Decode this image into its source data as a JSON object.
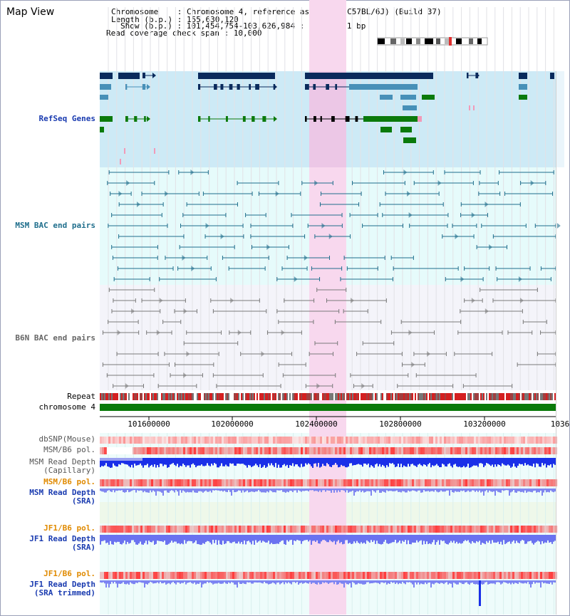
{
  "title": "Map View",
  "info": {
    "line1": "Chromosome    : Chromosome 4, reference assembly (C57BL/6J) (Build 37)",
    "line2": "Length (b.p.) : 155,630,120",
    "line3": "Show (b.p.) : 101,454,754-103,626,984 : 2,172,231 bp",
    "line4": "Read coverage check span : 10,000"
  },
  "tracks": {
    "refseq": "RefSeq Genes",
    "msm_bac": "MSM BAC end pairs",
    "b6n_bac": "B6N BAC end pairs",
    "repeat": "Repeat",
    "chromosome": "chromosome 4",
    "dbsnp": "dbSNP(Mouse)",
    "msm_b6_pol_1": "MSM/B6 pol.",
    "msm_read_depth_cap_1": "MSM Read Depth",
    "msm_read_depth_cap_2": "(Capillary)",
    "msm_b6_pol_2": "MSM/B6 pol.",
    "msm_read_depth_sra_1": "MSM Read Depth",
    "msm_read_depth_sra_2": "(SRA)",
    "jf1_b6_pol_1": "JF1/B6 pol.",
    "jf1_read_depth_sra_1": "JF1 Read Depth",
    "jf1_read_depth_sra_2": "(SRA)",
    "jf1_b6_pol_2": "JF1/B6 pol.",
    "jf1_read_depth_trim_1": "JF1 Read Depth",
    "jf1_read_depth_trim_2": "(SRA trimmed)"
  },
  "axis_ticks": [
    "101600000",
    "102000000",
    "102400000",
    "102800000",
    "103200000",
    "1036"
  ],
  "colors": {
    "refseq_bg": "#cdeaf6",
    "msm_bg": "#e6fbfb",
    "b6n_bg": "#f4f4fa",
    "highlight": "#f8d8ee",
    "navy": "#0a2a5c",
    "steel": "#4790b8",
    "green": "#0b7a0b",
    "pink": "#f29ab8",
    "msm_teal": "#1f6e8c",
    "gray": "#7a7a7a",
    "label_blue": "#1a3bb0",
    "label_orange": "#e08a00",
    "depth_blue": "#1a2fe8",
    "depth_light": "#7f86f0"
  }
}
